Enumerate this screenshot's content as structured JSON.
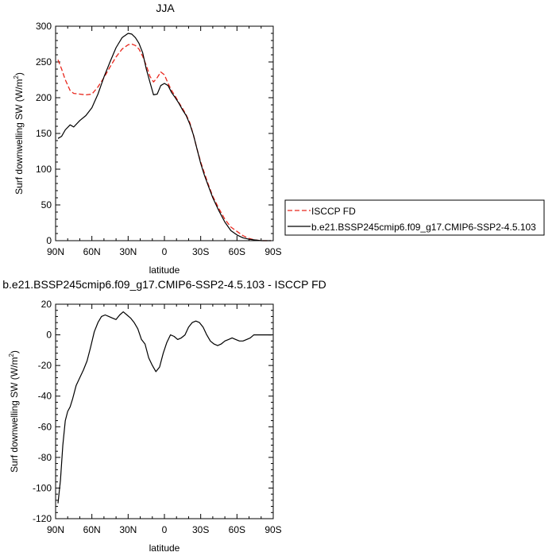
{
  "chart_data": [
    {
      "type": "line",
      "title": "JJA",
      "xlabel": "latitude",
      "ylabel": "Surf downwelling SW (W/m",
      "ylabel_sup": "2",
      "ylabel_close": ")",
      "xlim": [
        90,
        -90
      ],
      "ylim": [
        0,
        300
      ],
      "x_ticks": [
        90,
        60,
        30,
        0,
        -30,
        -60,
        -90
      ],
      "x_tick_labels": [
        "90N",
        "60N",
        "30N",
        "0",
        "30S",
        "60S",
        "90S"
      ],
      "y_ticks": [
        0,
        50,
        100,
        150,
        200,
        250,
        300
      ],
      "y_tick_labels": [
        "0",
        "50",
        "100",
        "150",
        "200",
        "250",
        "300"
      ],
      "grid": false,
      "legend_position": "right",
      "series": [
        {
          "name": "ISCCP FD",
          "color": "#e8261c",
          "dash": "dashed",
          "x": [
            88,
            85,
            82,
            78,
            75,
            70,
            65,
            60,
            55,
            50,
            45,
            40,
            35,
            30,
            27,
            24,
            21,
            18,
            15,
            12,
            9,
            6,
            3,
            0,
            -3,
            -6,
            -9,
            -12,
            -15,
            -18,
            -21,
            -24,
            -27,
            -30,
            -33,
            -36,
            -40,
            -45,
            -50,
            -55,
            -60,
            -65,
            -70,
            -75,
            -80,
            -85,
            -88
          ],
          "y": [
            253,
            240,
            225,
            210,
            206,
            205,
            204,
            205,
            215,
            228,
            243,
            257,
            268,
            274,
            275,
            273,
            268,
            258,
            245,
            230,
            222,
            228,
            236,
            232,
            220,
            210,
            202,
            193,
            185,
            176,
            165,
            148,
            128,
            110,
            95,
            80,
            62,
            45,
            30,
            19,
            13,
            7,
            3,
            1,
            0,
            0,
            0
          ]
        },
        {
          "name": "b.e21.BSSP245cmip6.f09_g17.CMIP6-SSP2-4.5.103",
          "color": "#000000",
          "dash": "solid",
          "x": [
            88,
            85,
            82,
            78,
            75,
            70,
            65,
            60,
            55,
            50,
            45,
            40,
            35,
            30,
            27,
            24,
            21,
            18,
            15,
            12,
            9,
            6,
            3,
            0,
            -3,
            -6,
            -9,
            -12,
            -15,
            -18,
            -21,
            -24,
            -27,
            -30,
            -33,
            -36,
            -40,
            -45,
            -50,
            -55,
            -60,
            -65,
            -70,
            -75,
            -80,
            -85,
            -88
          ],
          "y": [
            143,
            146,
            155,
            162,
            159,
            168,
            175,
            186,
            205,
            229,
            250,
            270,
            284,
            290,
            289,
            284,
            276,
            263,
            240,
            222,
            204,
            205,
            217,
            220,
            217,
            207,
            200,
            192,
            183,
            175,
            163,
            148,
            128,
            108,
            92,
            78,
            60,
            42,
            26,
            14,
            8,
            4,
            2,
            1,
            0,
            0,
            0
          ]
        }
      ]
    },
    {
      "type": "line",
      "title": "b.e21.BSSP245cmip6.f09_g17.CMIP6-SSP2-4.5.103 - ISCCP FD",
      "xlabel": "latitude",
      "ylabel": "Surf downwelling SW (W/m",
      "ylabel_sup": "2",
      "ylabel_close": ")",
      "xlim": [
        90,
        -90
      ],
      "ylim": [
        -120,
        20
      ],
      "x_ticks": [
        90,
        60,
        30,
        0,
        -30,
        -60,
        -90
      ],
      "x_tick_labels": [
        "90N",
        "60N",
        "30N",
        "0",
        "30S",
        "60S",
        "90S"
      ],
      "y_ticks": [
        -120,
        -100,
        -80,
        -60,
        -40,
        -20,
        0,
        20
      ],
      "y_tick_labels": [
        "-120",
        "-100",
        "-80",
        "-60",
        "-40",
        "-20",
        "0",
        "20"
      ],
      "grid": false,
      "series": [
        {
          "color": "#000000",
          "dash": "solid",
          "x": [
            88,
            86,
            84,
            82,
            80,
            78,
            76,
            73,
            70,
            67,
            64,
            61,
            58,
            55,
            52,
            49,
            46,
            43,
            40,
            37,
            34,
            31,
            28,
            25,
            22,
            19,
            16,
            13,
            10,
            7,
            4,
            1,
            -2,
            -5,
            -8,
            -11,
            -14,
            -17,
            -20,
            -23,
            -26,
            -29,
            -32,
            -35,
            -38,
            -41,
            -44,
            -47,
            -50,
            -53,
            -56,
            -59,
            -62,
            -65,
            -68,
            -71,
            -74,
            -77,
            -80,
            -85,
            -89
          ],
          "y": [
            -110,
            -95,
            -72,
            -56,
            -50,
            -47,
            -42,
            -33,
            -28,
            -23,
            -17,
            -8,
            2,
            8,
            12,
            13,
            12,
            11,
            10,
            13,
            15,
            13,
            11,
            8,
            4,
            -3,
            -6,
            -15,
            -20,
            -24,
            -21,
            -12,
            -5,
            0,
            -1,
            -3,
            -2,
            0,
            5,
            8,
            9,
            8,
            5,
            0,
            -4,
            -6,
            -7,
            -6,
            -4,
            -3,
            -2,
            -3,
            -4,
            -4,
            -3,
            -2,
            0,
            0,
            0,
            0,
            0
          ]
        }
      ]
    }
  ]
}
